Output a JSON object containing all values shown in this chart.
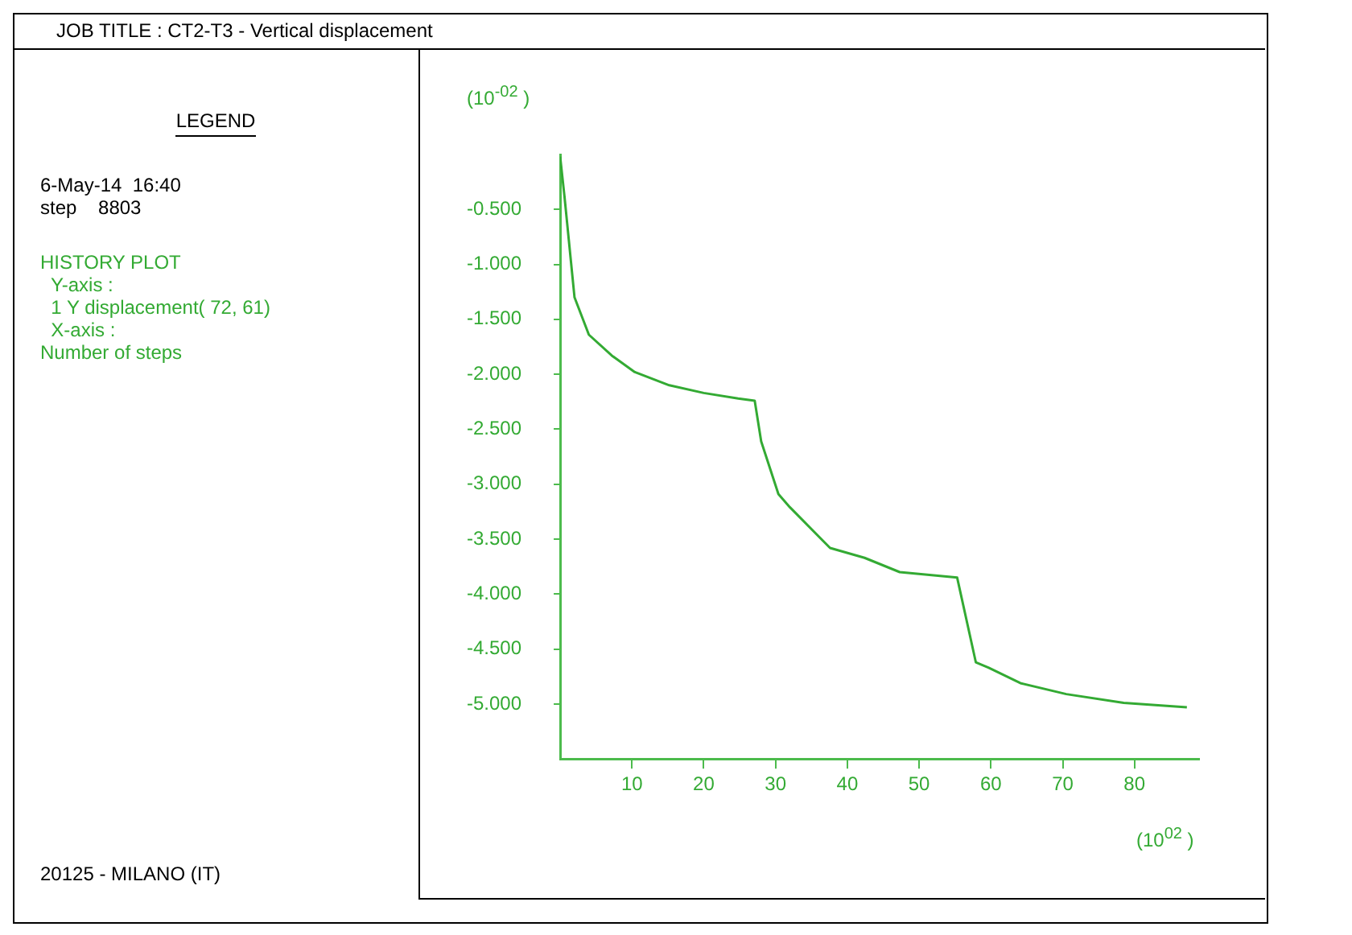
{
  "chart_data": {
    "type": "line",
    "title": "JOB TITLE : CT2-T3 - Vertical displacement",
    "ylabel": "(10$^{-02}$ )",
    "xlabel": "(10$^{02}$ )",
    "annotations": [
      "LEGEND",
      "6-May-14  16:40",
      "step    8803",
      "HISTORY PLOT",
      "  Y-axis :",
      "  1 Y displacement( 72, 61)",
      "  X-axis :",
      "Number of steps",
      "20125 - MILANO (IT)"
    ],
    "x": [
      0,
      0.6,
      2,
      4,
      7.2,
      10.4,
      15.2,
      20,
      24.8,
      27.1,
      28,
      30.4,
      32,
      37.6,
      42.4,
      47.3,
      55.3,
      57.9,
      59.7,
      64.1,
      70.5,
      78.5,
      87.3
    ],
    "series": [
      {
        "color": "#33aa33",
        "values": [
          -0.02,
          -0.38,
          -1.3,
          -1.64,
          -1.83,
          -1.98,
          -2.1,
          -2.17,
          -2.22,
          -2.24,
          -2.61,
          -3.09,
          -3.21,
          -3.58,
          -3.67,
          -3.8,
          -3.85,
          -4.62,
          -4.67,
          -4.81,
          -4.91,
          -4.99,
          -5.03
        ]
      }
    ],
    "xlim": [
      0,
      89
    ],
    "xticks": [
      10,
      20,
      30,
      40,
      50,
      60,
      70,
      80
    ],
    "ylim": [
      -5.5,
      0
    ],
    "yticks": [
      {
        "value": -0.5,
        "label": "-0.500"
      },
      {
        "value": -1,
        "label": "-1.000"
      },
      {
        "value": -1.5,
        "label": "-1.500"
      },
      {
        "value": -2,
        "label": "-2.000"
      },
      {
        "value": -2.5,
        "label": "-2.500"
      },
      {
        "value": -3,
        "label": "-3.000"
      },
      {
        "value": -3.5,
        "label": "-3.500"
      },
      {
        "value": -4,
        "label": "-4.000"
      },
      {
        "value": -4.5,
        "label": "-4.500"
      },
      {
        "value": -5,
        "label": "-5.000"
      }
    ],
    "grid": false,
    "legend": false,
    "marker": "none",
    "line_style": "solid"
  }
}
